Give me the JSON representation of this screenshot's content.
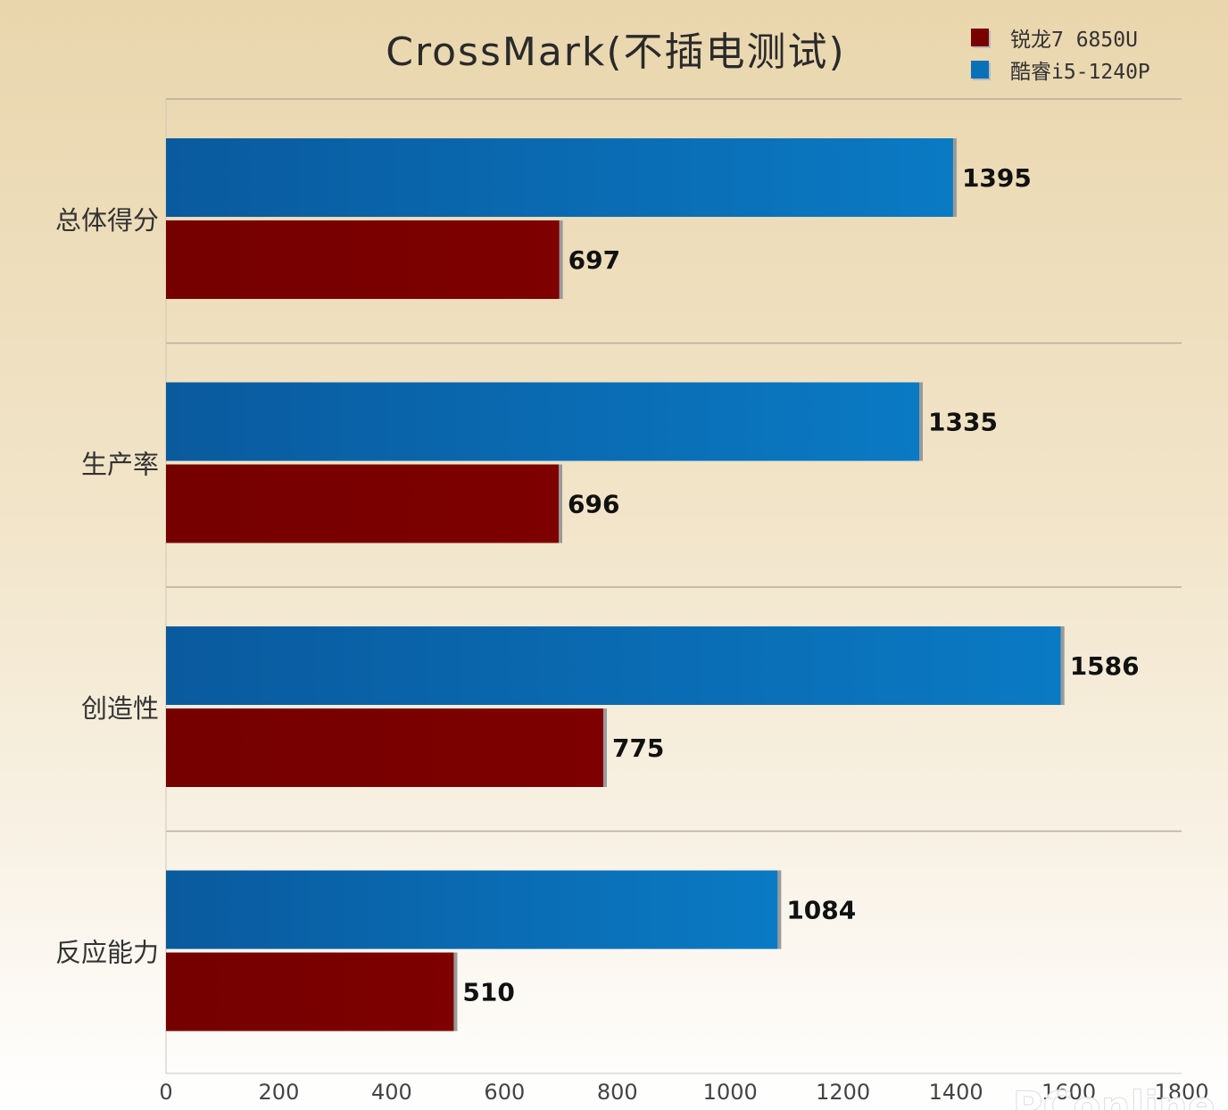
{
  "chart_data": {
    "type": "bar",
    "orientation": "horizontal",
    "title": "CrossMark(不插电测试)",
    "categories": [
      "总体得分",
      "生产率",
      "创造性",
      "反应能力"
    ],
    "series": [
      {
        "name": "酷睿i5-1240P",
        "color": "#0a70b8",
        "values": [
          1395,
          1335,
          1586,
          1084
        ]
      },
      {
        "name": "锐龙7 6850U",
        "color": "#7a0000",
        "values": [
          697,
          696,
          775,
          510
        ]
      }
    ],
    "xlim": [
      0,
      1800
    ],
    "xticks": [
      0,
      200,
      400,
      600,
      800,
      1000,
      1200,
      1400,
      1600,
      1800
    ],
    "grid": "horizontal separators between categories",
    "legend_position": "top-right",
    "legend_order": [
      "锐龙7 6850U",
      "酷睿i5-1240P"
    ],
    "watermark": "PConline"
  }
}
